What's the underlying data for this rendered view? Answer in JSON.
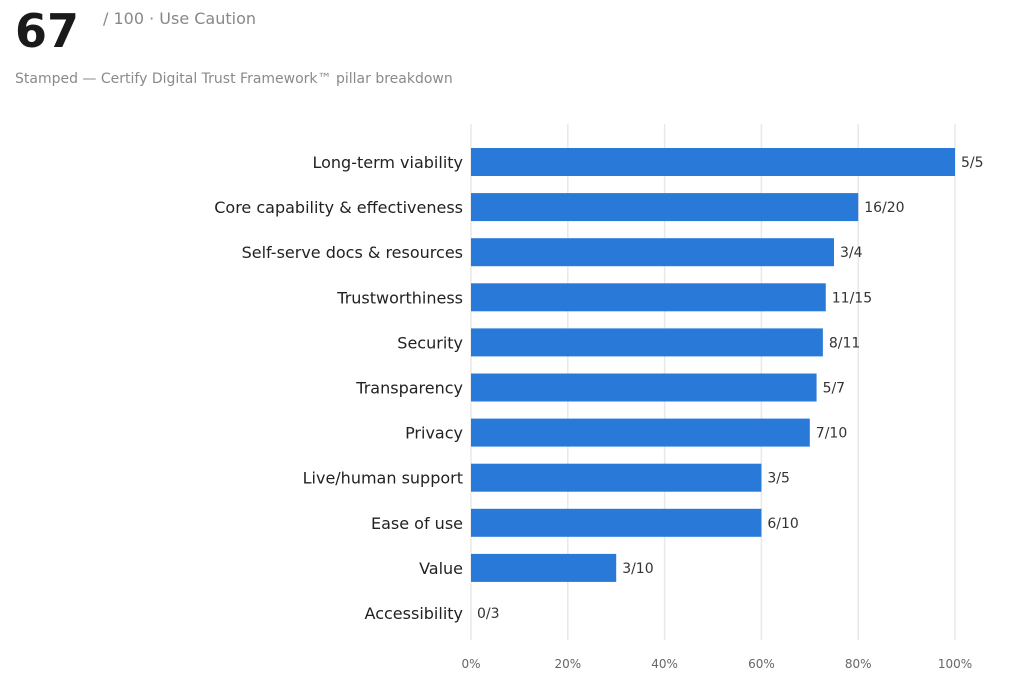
{
  "header": {
    "score": "67",
    "score_suffix": "/ 100 · Use Caution",
    "subtitle": "Stamped — Certify Digital Trust Framework™ pillar breakdown"
  },
  "colors": {
    "bar": "#2979d9",
    "grid": "#e8e8e8"
  },
  "chart_data": {
    "type": "bar",
    "orientation": "horizontal",
    "categories": [
      "Long-term viability",
      "Core capability & effectiveness",
      "Self-serve docs & resources",
      "Trustworthiness",
      "Security",
      "Transparency",
      "Privacy",
      "Live/human support",
      "Ease of use",
      "Value",
      "Accessibility"
    ],
    "values": [
      100,
      80,
      75,
      73.3,
      72.7,
      71.4,
      70,
      60,
      60,
      30,
      0
    ],
    "value_labels": [
      "5/5",
      "16/20",
      "3/4",
      "11/15",
      "8/11",
      "5/7",
      "7/10",
      "3/5",
      "6/10",
      "3/10",
      "0/3"
    ],
    "xlim": [
      0,
      100
    ],
    "xticks": [
      0,
      20,
      40,
      60,
      80,
      100
    ],
    "xtick_labels": [
      "0%",
      "20%",
      "40%",
      "60%",
      "80%",
      "100%"
    ],
    "grid": true
  }
}
